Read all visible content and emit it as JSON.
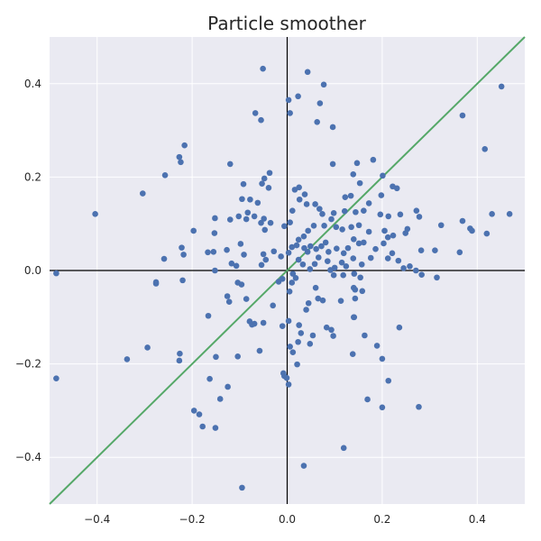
{
  "chart_data": {
    "type": "scatter",
    "title": "Particle smoother",
    "xlabel": "",
    "ylabel": "",
    "xlim": [
      -0.5,
      0.5
    ],
    "ylim": [
      -0.5,
      0.5
    ],
    "xticks": [
      -0.4,
      -0.2,
      0.0,
      0.2,
      0.4
    ],
    "xtick_labels": [
      "−0.4",
      "−0.2",
      "0.0",
      "0.2",
      "0.4"
    ],
    "yticks": [
      0.4,
      0.2,
      0.0,
      -0.2,
      -0.4
    ],
    "ytick_labels": [
      "0.4",
      "0.2",
      "0.0",
      "−0.2",
      "−0.4"
    ],
    "grid": true,
    "background_color": "#eaeaf2",
    "point_color": "#4c72b0",
    "line_color": "#55a868",
    "axis_line_color": "#000000",
    "reference_lines": {
      "horizontal_at": 0.0,
      "vertical_at": 0.0,
      "diagonal": "y = x"
    },
    "points": [
      {
        "x": -0.051,
        "y": 0.432
      },
      {
        "x": 0.043,
        "y": 0.425
      },
      {
        "x": 0.077,
        "y": 0.398
      },
      {
        "x": 0.023,
        "y": 0.373
      },
      {
        "x": 0.003,
        "y": 0.365
      },
      {
        "x": 0.069,
        "y": 0.358
      },
      {
        "x": -0.067,
        "y": 0.337
      },
      {
        "x": 0.006,
        "y": 0.337
      },
      {
        "x": -0.055,
        "y": 0.322
      },
      {
        "x": 0.063,
        "y": 0.318
      },
      {
        "x": 0.096,
        "y": 0.307
      },
      {
        "x": 0.451,
        "y": 0.394
      },
      {
        "x": 0.369,
        "y": 0.332
      },
      {
        "x": 0.416,
        "y": 0.26
      },
      {
        "x": -0.216,
        "y": 0.268
      },
      {
        "x": -0.227,
        "y": 0.243
      },
      {
        "x": -0.224,
        "y": 0.232
      },
      {
        "x": -0.257,
        "y": 0.204
      },
      {
        "x": -0.304,
        "y": 0.165
      },
      {
        "x": -0.404,
        "y": 0.121
      },
      {
        "x": -0.037,
        "y": 0.209
      },
      {
        "x": -0.048,
        "y": 0.197
      },
      {
        "x": -0.053,
        "y": 0.186
      },
      {
        "x": -0.039,
        "y": 0.177
      },
      {
        "x": -0.12,
        "y": 0.228
      },
      {
        "x": -0.092,
        "y": 0.185
      },
      {
        "x": -0.095,
        "y": 0.153
      },
      {
        "x": -0.078,
        "y": 0.152
      },
      {
        "x": -0.062,
        "y": 0.145
      },
      {
        "x": -0.083,
        "y": 0.124
      },
      {
        "x": -0.102,
        "y": 0.116
      },
      {
        "x": -0.086,
        "y": 0.11
      },
      {
        "x": -0.069,
        "y": 0.116
      },
      {
        "x": -0.049,
        "y": 0.111
      },
      {
        "x": -0.055,
        "y": 0.102
      },
      {
        "x": -0.035,
        "y": 0.102
      },
      {
        "x": -0.047,
        "y": 0.087
      },
      {
        "x": -0.152,
        "y": 0.112
      },
      {
        "x": -0.153,
        "y": 0.08
      },
      {
        "x": -0.12,
        "y": 0.109
      },
      {
        "x": -0.197,
        "y": 0.085
      },
      {
        "x": -0.222,
        "y": 0.049
      },
      {
        "x": -0.218,
        "y": 0.034
      },
      {
        "x": -0.259,
        "y": 0.025
      },
      {
        "x": -0.167,
        "y": 0.039
      },
      {
        "x": -0.155,
        "y": 0.04
      },
      {
        "x": -0.127,
        "y": 0.044
      },
      {
        "x": -0.098,
        "y": 0.057
      },
      {
        "x": -0.091,
        "y": 0.034
      },
      {
        "x": -0.117,
        "y": 0.015
      },
      {
        "x": -0.107,
        "y": 0.01
      },
      {
        "x": -0.152,
        "y": 0.0
      },
      {
        "x": -0.05,
        "y": 0.035
      },
      {
        "x": -0.054,
        "y": 0.012
      },
      {
        "x": -0.045,
        "y": 0.023
      },
      {
        "x": -0.028,
        "y": 0.041
      },
      {
        "x": -0.013,
        "y": 0.03
      },
      {
        "x": 0.025,
        "y": 0.178
      },
      {
        "x": 0.016,
        "y": 0.173
      },
      {
        "x": 0.037,
        "y": 0.163
      },
      {
        "x": 0.026,
        "y": 0.152
      },
      {
        "x": 0.041,
        "y": 0.142
      },
      {
        "x": 0.059,
        "y": 0.142
      },
      {
        "x": 0.068,
        "y": 0.132
      },
      {
        "x": 0.011,
        "y": 0.128
      },
      {
        "x": 0.006,
        "y": 0.103
      },
      {
        "x": -0.006,
        "y": 0.095
      },
      {
        "x": 0.044,
        "y": 0.085
      },
      {
        "x": 0.056,
        "y": 0.096
      },
      {
        "x": 0.078,
        "y": 0.096
      },
      {
        "x": 0.074,
        "y": 0.121
      },
      {
        "x": 0.093,
        "y": 0.11
      },
      {
        "x": 0.098,
        "y": 0.123
      },
      {
        "x": 0.122,
        "y": 0.157
      },
      {
        "x": 0.134,
        "y": 0.16
      },
      {
        "x": 0.139,
        "y": 0.206
      },
      {
        "x": 0.147,
        "y": 0.23
      },
      {
        "x": 0.096,
        "y": 0.228
      },
      {
        "x": 0.181,
        "y": 0.237
      },
      {
        "x": 0.153,
        "y": 0.187
      },
      {
        "x": 0.172,
        "y": 0.144
      },
      {
        "x": 0.198,
        "y": 0.161
      },
      {
        "x": 0.201,
        "y": 0.203
      },
      {
        "x": 0.222,
        "y": 0.18
      },
      {
        "x": 0.231,
        "y": 0.176
      },
      {
        "x": 0.121,
        "y": 0.127
      },
      {
        "x": 0.144,
        "y": 0.125
      },
      {
        "x": 0.161,
        "y": 0.128
      },
      {
        "x": 0.196,
        "y": 0.12
      },
      {
        "x": 0.213,
        "y": 0.116
      },
      {
        "x": 0.238,
        "y": 0.12
      },
      {
        "x": 0.272,
        "y": 0.128
      },
      {
        "x": 0.278,
        "y": 0.115
      },
      {
        "x": 0.324,
        "y": 0.097
      },
      {
        "x": 0.369,
        "y": 0.106
      },
      {
        "x": 0.385,
        "y": 0.09
      },
      {
        "x": 0.389,
        "y": 0.085
      },
      {
        "x": 0.42,
        "y": 0.079
      },
      {
        "x": 0.431,
        "y": 0.121
      },
      {
        "x": 0.468,
        "y": 0.121
      },
      {
        "x": 0.363,
        "y": 0.039
      },
      {
        "x": 0.311,
        "y": 0.043
      },
      {
        "x": 0.282,
        "y": 0.043
      },
      {
        "x": 0.249,
        "y": 0.08
      },
      {
        "x": 0.253,
        "y": 0.089
      },
      {
        "x": 0.223,
        "y": 0.075
      },
      {
        "x": 0.203,
        "y": 0.058
      },
      {
        "x": 0.212,
        "y": 0.071
      },
      {
        "x": 0.205,
        "y": 0.085
      },
      {
        "x": 0.172,
        "y": 0.083
      },
      {
        "x": 0.151,
        "y": 0.097
      },
      {
        "x": 0.135,
        "y": 0.093
      },
      {
        "x": 0.116,
        "y": 0.088
      },
      {
        "x": 0.103,
        "y": 0.093
      },
      {
        "x": 0.14,
        "y": 0.067
      },
      {
        "x": 0.151,
        "y": 0.058
      },
      {
        "x": 0.161,
        "y": 0.06
      },
      {
        "x": 0.128,
        "y": 0.048
      },
      {
        "x": 0.119,
        "y": 0.037
      },
      {
        "x": 0.186,
        "y": 0.046
      },
      {
        "x": 0.176,
        "y": 0.027
      },
      {
        "x": 0.157,
        "y": 0.013
      },
      {
        "x": 0.139,
        "y": 0.026
      },
      {
        "x": 0.115,
        "y": 0.017
      },
      {
        "x": 0.124,
        "y": 0.009
      },
      {
        "x": 0.212,
        "y": 0.026
      },
      {
        "x": 0.221,
        "y": 0.037
      },
      {
        "x": 0.234,
        "y": 0.021
      },
      {
        "x": 0.245,
        "y": 0.005
      },
      {
        "x": 0.258,
        "y": 0.009
      },
      {
        "x": 0.271,
        "y": 0.0
      },
      {
        "x": 0.283,
        "y": -0.009
      },
      {
        "x": 0.315,
        "y": -0.015
      },
      {
        "x": 0.104,
        "y": 0.047
      },
      {
        "x": 0.087,
        "y": 0.04
      },
      {
        "x": 0.081,
        "y": 0.06
      },
      {
        "x": 0.072,
        "y": 0.052
      },
      {
        "x": 0.061,
        "y": 0.046
      },
      {
        "x": 0.049,
        "y": 0.052
      },
      {
        "x": 0.043,
        "y": 0.04
      },
      {
        "x": 0.036,
        "y": 0.048
      },
      {
        "x": 0.024,
        "y": 0.066
      },
      {
        "x": 0.02,
        "y": 0.054
      },
      {
        "x": 0.01,
        "y": 0.05
      },
      {
        "x": 0.035,
        "y": 0.073
      },
      {
        "x": 0.003,
        "y": 0.038
      },
      {
        "x": 0.024,
        "y": 0.023
      },
      {
        "x": 0.033,
        "y": 0.013
      },
      {
        "x": 0.048,
        "y": 0.003
      },
      {
        "x": 0.058,
        "y": 0.014
      },
      {
        "x": 0.066,
        "y": 0.028
      },
      {
        "x": 0.085,
        "y": 0.02
      },
      {
        "x": 0.091,
        "y": 0.001
      },
      {
        "x": 0.1,
        "y": 0.006
      },
      {
        "x": 0.098,
        "y": -0.01
      },
      {
        "x": 0.118,
        "y": -0.01
      },
      {
        "x": 0.141,
        "y": -0.007
      },
      {
        "x": 0.154,
        "y": -0.015
      },
      {
        "x": 0.158,
        "y": -0.044
      },
      {
        "x": 0.14,
        "y": -0.037
      },
      {
        "x": 0.143,
        "y": -0.041
      },
      {
        "x": 0.113,
        "y": -0.065
      },
      {
        "x": 0.143,
        "y": -0.06
      },
      {
        "x": 0.012,
        "y": -0.007
      },
      {
        "x": 0.018,
        "y": -0.016
      },
      {
        "x": 0.01,
        "y": -0.026
      },
      {
        "x": -0.01,
        "y": -0.018
      },
      {
        "x": -0.018,
        "y": -0.024
      },
      {
        "x": 0.005,
        "y": -0.045
      },
      {
        "x": 0.045,
        "y": -0.07
      },
      {
        "x": 0.04,
        "y": -0.084
      },
      {
        "x": 0.06,
        "y": -0.037
      },
      {
        "x": 0.065,
        "y": -0.06
      },
      {
        "x": 0.075,
        "y": -0.064
      },
      {
        "x": 0.141,
        "y": -0.1
      },
      {
        "x": 0.093,
        "y": -0.127
      },
      {
        "x": 0.083,
        "y": -0.122
      },
      {
        "x": 0.097,
        "y": -0.14
      },
      {
        "x": 0.054,
        "y": -0.139
      },
      {
        "x": 0.029,
        "y": -0.134
      },
      {
        "x": 0.025,
        "y": -0.117
      },
      {
        "x": 0.048,
        "y": -0.157
      },
      {
        "x": 0.023,
        "y": -0.153
      },
      {
        "x": 0.006,
        "y": -0.163
      },
      {
        "x": 0.003,
        "y": -0.108
      },
      {
        "x": -0.01,
        "y": -0.119
      },
      {
        "x": -0.03,
        "y": -0.075
      },
      {
        "x": 0.012,
        "y": -0.175
      },
      {
        "x": 0.021,
        "y": -0.201
      },
      {
        "x": -0.05,
        "y": -0.112
      },
      {
        "x": -0.069,
        "y": -0.114
      },
      {
        "x": -0.074,
        "y": -0.116
      },
      {
        "x": -0.079,
        "y": -0.109
      },
      {
        "x": -0.086,
        "y": -0.061
      },
      {
        "x": -0.096,
        "y": -0.03
      },
      {
        "x": -0.104,
        "y": -0.026
      },
      {
        "x": -0.126,
        "y": -0.055
      },
      {
        "x": -0.122,
        "y": -0.067
      },
      {
        "x": -0.166,
        "y": -0.097
      },
      {
        "x": -0.22,
        "y": -0.021
      },
      {
        "x": -0.276,
        "y": -0.025
      },
      {
        "x": -0.276,
        "y": -0.028
      },
      {
        "x": -0.486,
        "y": -0.006
      },
      {
        "x": -0.294,
        "y": -0.165
      },
      {
        "x": -0.337,
        "y": -0.19
      },
      {
        "x": -0.226,
        "y": -0.178
      },
      {
        "x": -0.227,
        "y": -0.193
      },
      {
        "x": -0.15,
        "y": -0.185
      },
      {
        "x": -0.104,
        "y": -0.184
      },
      {
        "x": -0.058,
        "y": -0.172
      },
      {
        "x": -0.008,
        "y": -0.22
      },
      {
        "x": -0.006,
        "y": -0.226
      },
      {
        "x": -0.001,
        "y": -0.23
      },
      {
        "x": 0.003,
        "y": -0.244
      },
      {
        "x": -0.163,
        "y": -0.232
      },
      {
        "x": -0.125,
        "y": -0.249
      },
      {
        "x": -0.141,
        "y": -0.275
      },
      {
        "x": -0.196,
        "y": -0.3
      },
      {
        "x": -0.185,
        "y": -0.308
      },
      {
        "x": -0.178,
        "y": -0.334
      },
      {
        "x": -0.151,
        "y": -0.337
      },
      {
        "x": -0.095,
        "y": -0.465
      },
      {
        "x": 0.035,
        "y": -0.418
      },
      {
        "x": 0.119,
        "y": -0.38
      },
      {
        "x": 0.169,
        "y": -0.276
      },
      {
        "x": 0.2,
        "y": -0.293
      },
      {
        "x": 0.277,
        "y": -0.292
      },
      {
        "x": 0.213,
        "y": -0.236
      },
      {
        "x": 0.2,
        "y": -0.189
      },
      {
        "x": 0.138,
        "y": -0.179
      },
      {
        "x": 0.189,
        "y": -0.161
      },
      {
        "x": 0.163,
        "y": -0.139
      },
      {
        "x": 0.14,
        "y": -0.1
      },
      {
        "x": 0.236,
        "y": -0.122
      },
      {
        "x": -0.486,
        "y": -0.231
      }
    ]
  }
}
